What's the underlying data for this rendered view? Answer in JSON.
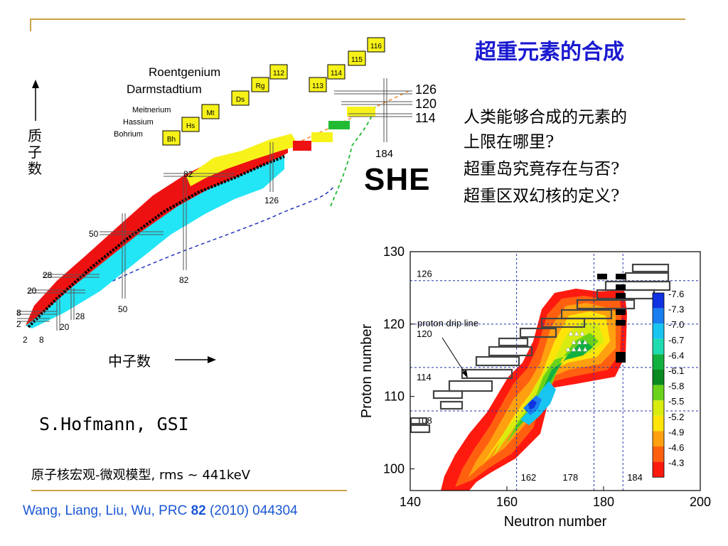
{
  "slide": {
    "title": "超重元素的合成",
    "questions": [
      "人类能够合成的元素的",
      "上限在哪里?",
      "超重岛究竟存在与否?",
      "超重区双幻核的定义?"
    ],
    "she_label": "SHE",
    "author": "S.Hofmann, GSI",
    "model_note": "原子核宏观-微观模型, rms ~ 441keV",
    "citation": {
      "prefix": "Wang, Liang, Liu, Wu, PRC ",
      "volume": "82",
      "suffix": " (2010) 044304"
    }
  },
  "nuclide_chart": {
    "proton_axis_label": "质子数",
    "neutron_axis_label": "中子数",
    "element_names": [
      "Roentgenium",
      "Darmstadtium",
      "Meitnerium",
      "Hassium",
      "Bohrium"
    ],
    "element_boxes": [
      "Bh",
      "Hs",
      "Mt",
      "Ds",
      "Rg",
      "112",
      "113",
      "114",
      "115",
      "116"
    ],
    "magic_labels": [
      "2",
      "8",
      "20",
      "28",
      "50",
      "82",
      "126",
      "184"
    ],
    "shell_labels": [
      "126",
      "120",
      "114"
    ],
    "colors": {
      "red": "#ee1111",
      "cyan": "#22e5f5",
      "yellow": "#f6f21a",
      "black": "#000000",
      "blue_dashed": "#2233bb",
      "green_dashed": "#22bb33",
      "orange_dashed": "#f08a22"
    }
  },
  "chart_data": {
    "type": "heatmap",
    "xlabel": "Neutron number",
    "ylabel": "Proton number",
    "xlim": [
      140,
      200
    ],
    "ylim": [
      97,
      130
    ],
    "x_ticks": [
      140,
      160,
      180,
      200
    ],
    "y_ticks": [
      100,
      110,
      120,
      130
    ],
    "annotation": "proton drip line",
    "magic_lines_x": [
      162,
      178,
      184
    ],
    "magic_lines_y": [
      108,
      114,
      120,
      126
    ],
    "colorbar": {
      "labels": [
        "-7.6",
        "-7.3",
        "-7.0",
        "-6.7",
        "-6.4",
        "-6.1",
        "-5.8",
        "-5.5",
        "-5.2",
        "-4.9",
        "-4.6",
        "-4.3"
      ],
      "colors": [
        "#1032e0",
        "#1a7ef0",
        "#18c4f0",
        "#1fdcb0",
        "#12b040",
        "#0a8a20",
        "#6ad21a",
        "#d8ec10",
        "#ffe40a",
        "#ffa010",
        "#ff6010",
        "#ff1a10"
      ]
    }
  }
}
